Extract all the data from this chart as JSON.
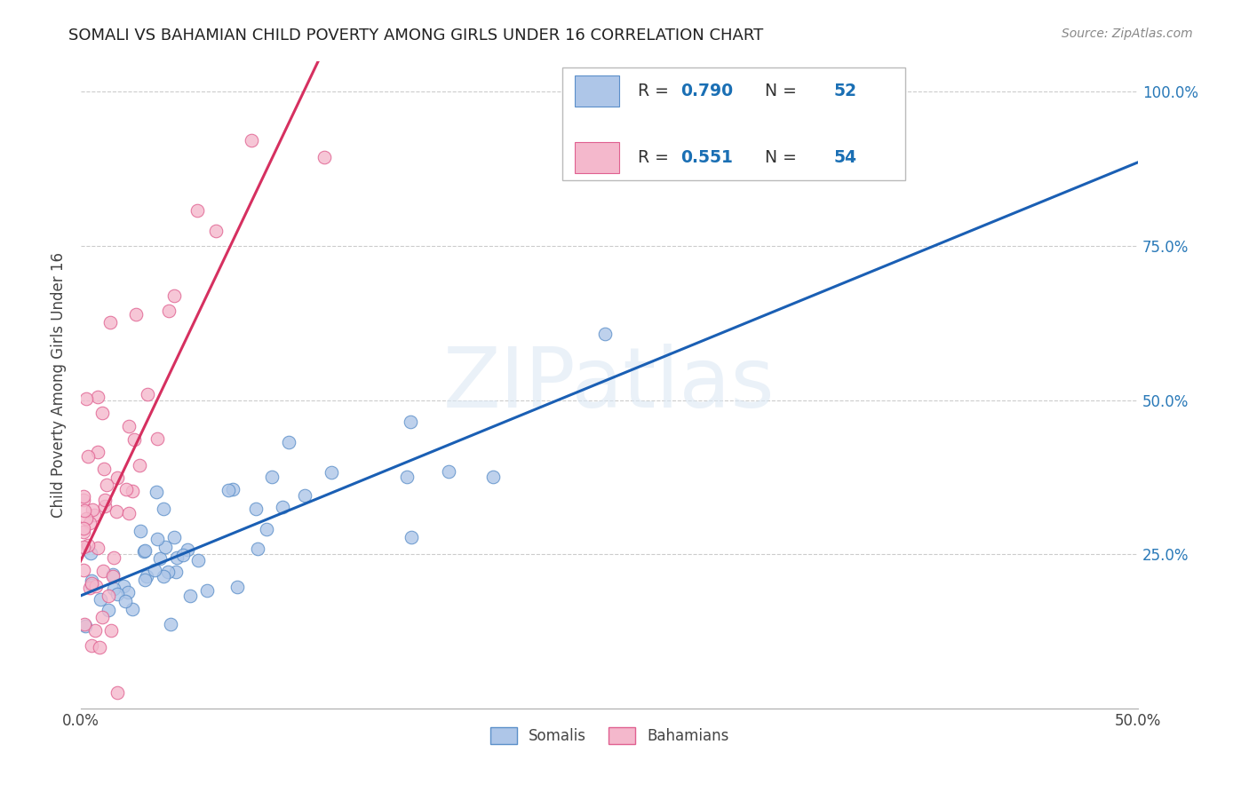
{
  "title": "SOMALI VS BAHAMIAN CHILD POVERTY AMONG GIRLS UNDER 16 CORRELATION CHART",
  "source": "Source: ZipAtlas.com",
  "ylabel": "Child Poverty Among Girls Under 16",
  "xlim": [
    0.0,
    0.5
  ],
  "ylim": [
    0.0,
    1.05
  ],
  "x_tick_pos": [
    0.0,
    0.1,
    0.2,
    0.3,
    0.4,
    0.5
  ],
  "x_tick_labels": [
    "0.0%",
    "",
    "",
    "",
    "",
    "50.0%"
  ],
  "y_tick_pos": [
    0.25,
    0.5,
    0.75,
    1.0
  ],
  "y_tick_labels": [
    "25.0%",
    "50.0%",
    "75.0%",
    "100.0%"
  ],
  "watermark": "ZIPatlas",
  "somali_color": "#aec6e8",
  "bahamian_color": "#f4b8cc",
  "somali_edge": "#5b8fc9",
  "bahamian_edge": "#e06090",
  "trend_somali_color": "#1a5fb4",
  "trend_bahamian_color": "#d63060",
  "R_somali": 0.79,
  "N_somali": 52,
  "R_bahamian": 0.551,
  "N_bahamian": 54,
  "legend_text_color": "#333333",
  "legend_value_color": "#1a6fb4",
  "right_axis_color": "#2979b8",
  "grid_color": "#cccccc",
  "title_fontsize": 13,
  "axis_fontsize": 12
}
